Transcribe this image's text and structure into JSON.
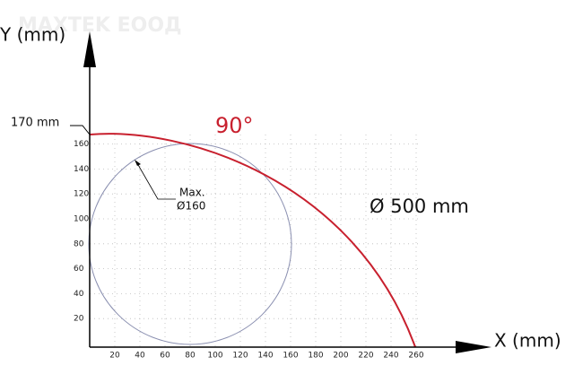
{
  "watermark": "MAXTEK ЕООД",
  "y_axis_label": "Y (mm)",
  "x_axis_label": "X (mm)",
  "height_label": "170 mm",
  "angle_label": "90°",
  "diameter_label": "Ø 500 mm",
  "max_label": [
    "Max.",
    "Ø160"
  ],
  "xticks": [
    20,
    40,
    60,
    80,
    100,
    120,
    140,
    160,
    180,
    200,
    220,
    240,
    260
  ],
  "yticks": [
    20,
    40,
    60,
    80,
    100,
    120,
    140,
    160
  ]
}
